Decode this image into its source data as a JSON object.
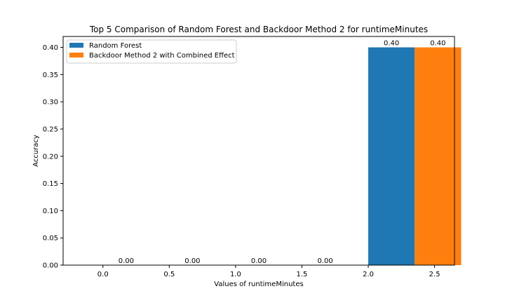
{
  "chart_data": {
    "type": "bar",
    "title": "Top 5 Comparison of Random Forest and Backdoor Method 2 for runtimeMinutes",
    "xlabel": "Values of runtimeMinutes",
    "ylabel": "Accuracy",
    "xlim": [
      -0.3,
      2.65
    ],
    "ylim": [
      0.0,
      0.42
    ],
    "x_ticks": [
      0.0,
      0.5,
      1.0,
      1.5,
      2.0,
      2.5
    ],
    "x_tick_labels": [
      "0.0",
      "0.5",
      "1.0",
      "1.5",
      "2.0",
      "2.5"
    ],
    "y_ticks": [
      0.0,
      0.05,
      0.1,
      0.15,
      0.2,
      0.25,
      0.3,
      0.35,
      0.4
    ],
    "y_tick_labels": [
      "0.00",
      "0.05",
      "0.10",
      "0.15",
      "0.20",
      "0.25",
      "0.30",
      "0.35",
      "0.40"
    ],
    "grid": false,
    "legend_position": "top-left",
    "bar_width": 0.35,
    "series": [
      {
        "name": "Random Forest",
        "color": "#1f77b4",
        "x": [
          0.0,
          0.5,
          1.0,
          1.5,
          2.0
        ],
        "values": [
          0.0,
          0.0,
          0.0,
          0.0,
          0.4
        ],
        "labels": [
          "0.00",
          "0.00",
          "0.00",
          "0.00",
          "0.40"
        ]
      },
      {
        "name": "Backdoor Method 2 with Combined Effect",
        "color": "#ff7f0e",
        "x": [
          0.35,
          0.85,
          1.35,
          1.85,
          2.35
        ],
        "values": [
          0.0,
          0.0,
          0.0,
          0.0,
          0.4
        ],
        "labels": [
          "",
          "",
          "",
          "",
          "0.40"
        ]
      }
    ]
  }
}
